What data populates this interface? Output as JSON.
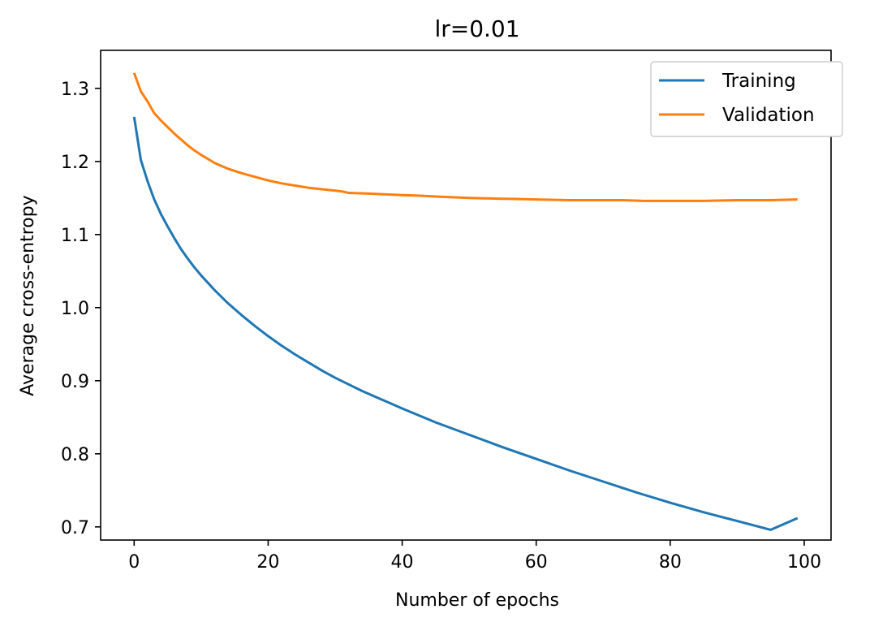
{
  "chart_data": {
    "type": "line",
    "title": "lr=0.01",
    "xlabel": "Number of epochs",
    "ylabel": "Average cross-entropy",
    "xlim": [
      -5,
      104
    ],
    "ylim": [
      0.682,
      1.352
    ],
    "xticks": [
      0,
      20,
      40,
      60,
      80,
      100
    ],
    "xtick_labels": [
      "0",
      "20",
      "40",
      "60",
      "80",
      "100"
    ],
    "yticks": [
      0.7,
      0.8,
      0.9,
      1.0,
      1.1,
      1.2,
      1.3
    ],
    "ytick_labels": [
      "0.7",
      "0.8",
      "0.9",
      "1.0",
      "1.1",
      "1.2",
      "1.3"
    ],
    "grid": false,
    "legend_position": "top-right",
    "series": [
      {
        "name": "Training",
        "color": "#1f77b4",
        "x": [
          0,
          1,
          2,
          3,
          4,
          5,
          6,
          7,
          8,
          9,
          10,
          12,
          14,
          16,
          18,
          20,
          22,
          24,
          26,
          28,
          30,
          32,
          34,
          36,
          38,
          40,
          45,
          50,
          55,
          60,
          65,
          70,
          75,
          80,
          85,
          90,
          95,
          99
        ],
        "y": [
          1.261,
          1.202,
          1.173,
          1.148,
          1.128,
          1.111,
          1.095,
          1.08,
          1.067,
          1.055,
          1.044,
          1.024,
          1.006,
          0.99,
          0.975,
          0.961,
          0.948,
          0.936,
          0.925,
          0.914,
          0.904,
          0.895,
          0.886,
          0.878,
          0.87,
          0.862,
          0.843,
          0.826,
          0.809,
          0.793,
          0.777,
          0.762,
          0.747,
          0.733,
          0.72,
          0.708,
          0.696,
          0.712
        ]
      },
      {
        "name": "Validation",
        "color": "#ff7f0e",
        "x": [
          0,
          1,
          2,
          3,
          4,
          5,
          6,
          7,
          8,
          9,
          10,
          12,
          14,
          16,
          18,
          20,
          22,
          24,
          26,
          28,
          30,
          31,
          32,
          35,
          40,
          43,
          45,
          50,
          55,
          60,
          65,
          70,
          73,
          76,
          80,
          85,
          90,
          95,
          99
        ],
        "y": [
          1.321,
          1.296,
          1.282,
          1.266,
          1.256,
          1.247,
          1.238,
          1.23,
          1.222,
          1.215,
          1.209,
          1.198,
          1.19,
          1.184,
          1.179,
          1.174,
          1.17,
          1.167,
          1.164,
          1.162,
          1.16,
          1.159,
          1.157,
          1.156,
          1.154,
          1.153,
          1.152,
          1.15,
          1.149,
          1.148,
          1.147,
          1.147,
          1.147,
          1.146,
          1.146,
          1.146,
          1.147,
          1.147,
          1.148
        ]
      }
    ]
  }
}
